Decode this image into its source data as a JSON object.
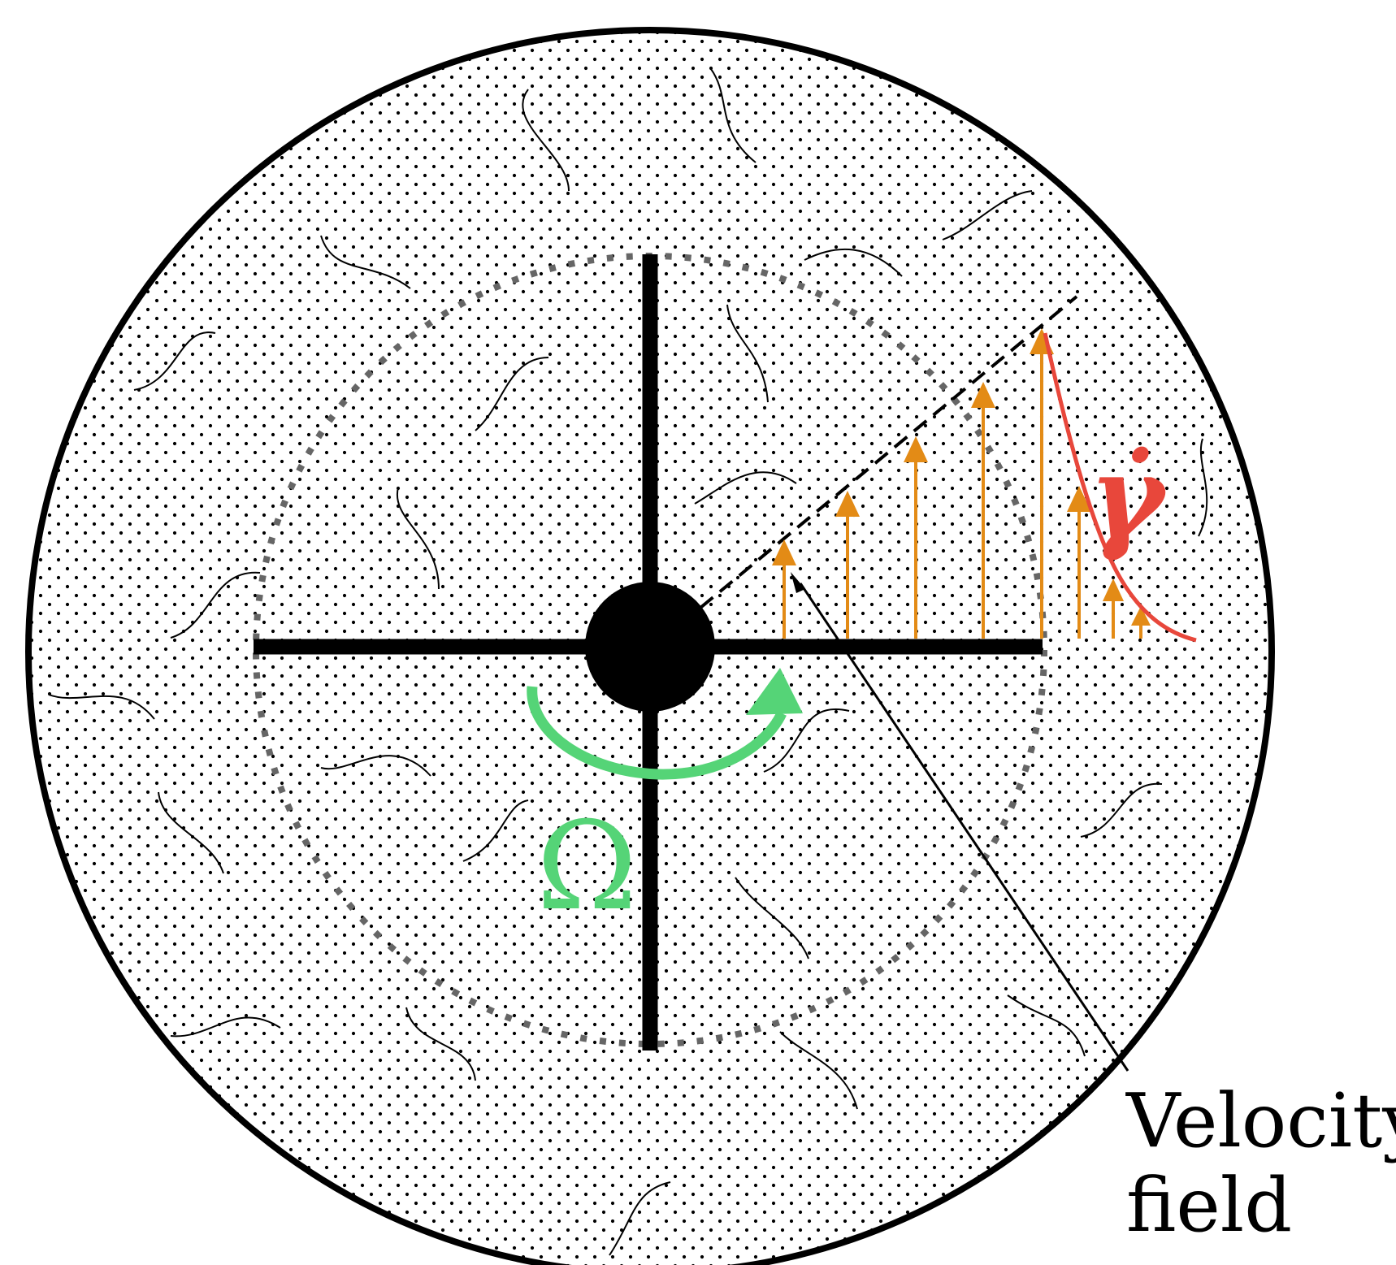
{
  "labels": {
    "omega": "Ω",
    "gamma_dot": "γ̇",
    "velocity_field": [
      "Velocity",
      "field"
    ]
  },
  "colors": {
    "outer_circle": "#000000",
    "particles": "#000000",
    "impeller": "#000000",
    "inner_boundary": "#666666",
    "velocity_arrows": "#e38b16",
    "shear_rate_curve": "#e8473b",
    "rotation": "#55d477",
    "pointer": "#000000"
  },
  "icons": {
    "rotation_arrow": "curved-arrow-clockwise-icon"
  }
}
